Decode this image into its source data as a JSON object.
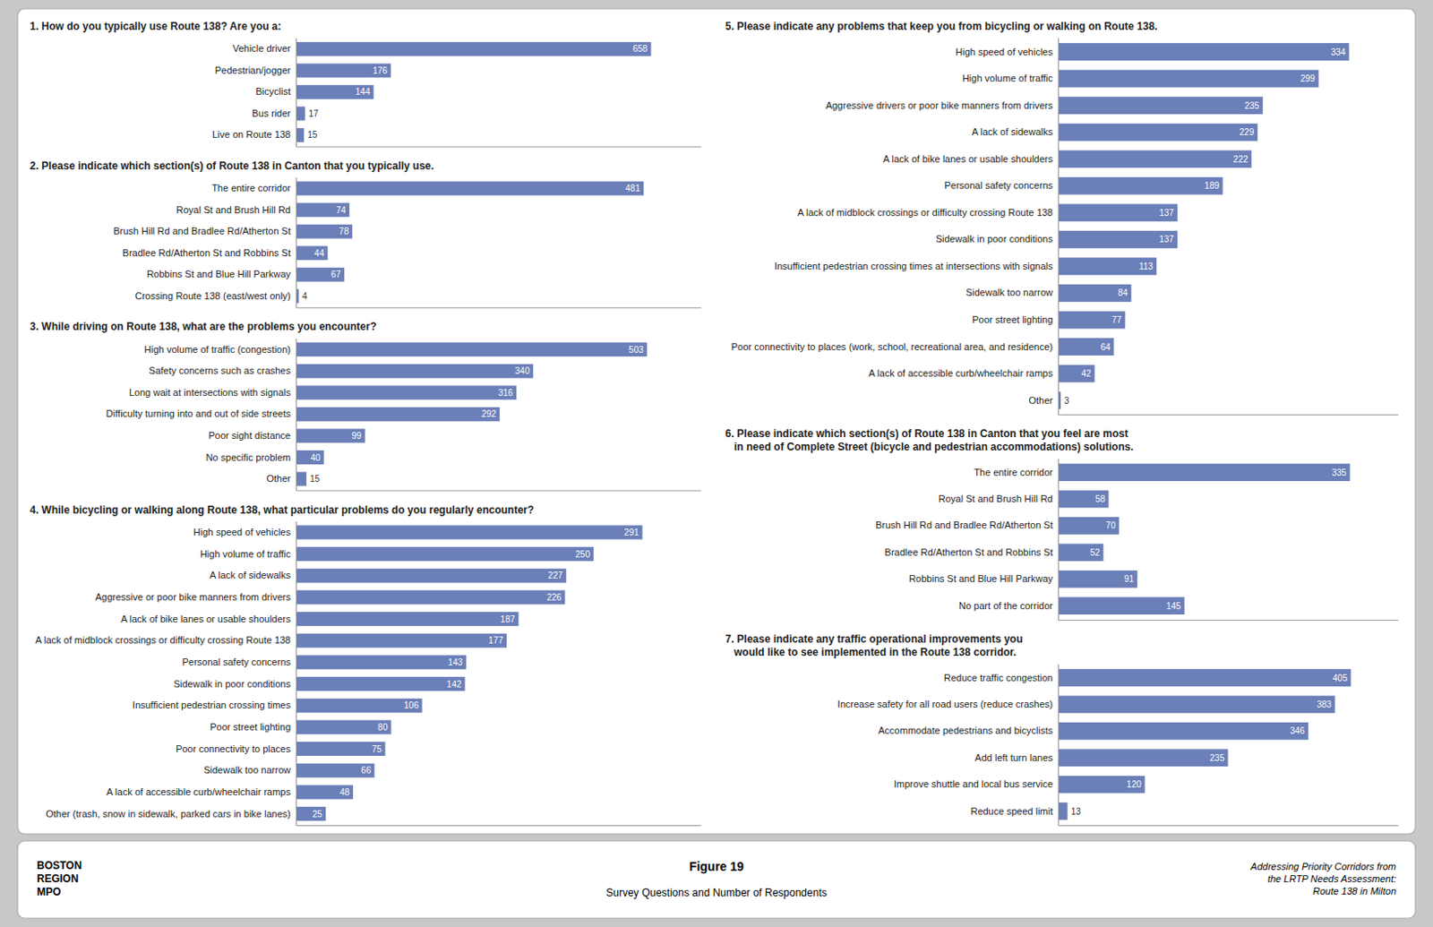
{
  "title": "Figure 19",
  "subtitle": "Survey Questions and Number of Respondents",
  "annotations": [
    "BOSTON\nREGION\nMPO",
    "Addressing Priority Corridors from\nthe LRTP Needs Assessment:\nRoute 138 in Milton"
  ],
  "chart_data": [
    {
      "type": "bar",
      "orientation": "horizontal",
      "title": "1. How do you typically use Route 138? Are you a:",
      "categories": [
        "Vehicle driver",
        "Pedestrian/jogger",
        "Bicyclist",
        "Bus rider",
        "Live on Route 138"
      ],
      "values": [
        658,
        176,
        144,
        17,
        15
      ],
      "color": "#6b7fb8",
      "xlim": [
        0,
        750
      ],
      "grid": false,
      "data_labels": true,
      "tick_labels": "y"
    },
    {
      "type": "bar",
      "orientation": "horizontal",
      "title": "2. Please indicate which section(s) of Route 138 in Canton that you typically use.",
      "categories": [
        "The entire corridor",
        "Royal St and Brush Hill Rd",
        "Brush Hill Rd and Bradlee Rd/Atherton St",
        "Bradlee Rd/Atherton St and Robbins St",
        "Robbins St and Blue Hill Parkway",
        "Crossing Route 138 (east/west only)"
      ],
      "values": [
        481,
        74,
        78,
        44,
        67,
        4
      ],
      "color": "#6b7fb8",
      "xlim": [
        0,
        560
      ],
      "grid": false,
      "data_labels": true,
      "tick_labels": "y"
    },
    {
      "type": "bar",
      "orientation": "horizontal",
      "title": "3. While driving on Route 138, what are the problems you encounter?",
      "categories": [
        "High volume of traffic (congestion)",
        "Safety concerns such as crashes",
        "Long wait at intersections with signals",
        "Difficulty turning into and out of side streets",
        "Poor sight distance",
        "No specific problem",
        "Other"
      ],
      "values": [
        503,
        340,
        316,
        292,
        99,
        40,
        15
      ],
      "color": "#6b7fb8",
      "xlim": [
        0,
        580
      ],
      "grid": false,
      "data_labels": true,
      "tick_labels": "y"
    },
    {
      "type": "bar",
      "orientation": "horizontal",
      "title": "4. While bicycling or walking along Route 138, what particular problems do you regularly encounter?",
      "categories": [
        "High speed of vehicles",
        "High volume of traffic",
        "A lack of sidewalks",
        "Aggressive or poor bike manners from drivers",
        "A lack of bike lanes or usable shoulders",
        "A lack of midblock crossings or difficulty crossing Route 138",
        "Personal safety concerns",
        "Sidewalk in poor conditions",
        "Insufficient pedestrian crossing times",
        "Poor street lighting",
        "Poor connectivity to places",
        "Sidewalk too narrow",
        "A lack of accessible curb/wheelchair ramps",
        "Other (trash, snow in sidewalk, parked cars in bike lanes)"
      ],
      "values": [
        291,
        250,
        227,
        226,
        187,
        177,
        143,
        142,
        106,
        80,
        75,
        66,
        48,
        25
      ],
      "color": "#6b7fb8",
      "xlim": [
        0,
        340
      ],
      "grid": false,
      "data_labels": true,
      "tick_labels": "y"
    },
    {
      "type": "bar",
      "orientation": "horizontal",
      "title": "5. Please indicate any problems that keep you from bicycling or walking on Route 138.",
      "categories": [
        "High speed of vehicles",
        "High volume of traffic",
        "Aggressive drivers or poor bike manners from drivers",
        "A lack of sidewalks",
        "A lack of bike lanes or usable shoulders",
        "Personal safety concerns",
        "A lack of midblock crossings or difficulty crossing Route 138",
        "Sidewalk in poor conditions",
        "Insufficient pedestrian crossing times at intersections with signals",
        "Sidewalk too narrow",
        "Poor street lighting",
        "Poor connectivity to places (work, school, recreational area, and residence)",
        "A lack of accessible curb/wheelchair ramps",
        "Other"
      ],
      "values": [
        334,
        299,
        235,
        229,
        222,
        189,
        137,
        137,
        113,
        84,
        77,
        64,
        42,
        3
      ],
      "color": "#6b7fb8",
      "xlim": [
        0,
        390
      ],
      "grid": false,
      "data_labels": true,
      "tick_labels": "y"
    },
    {
      "type": "bar",
      "orientation": "horizontal",
      "title": "6. Please indicate which section(s) of Route 138 in Canton that you feel are most\n   in need of Complete Street (bicycle and pedestrian accommodations) solutions.",
      "categories": [
        "The entire corridor",
        "Royal St and Brush Hill Rd",
        "Brush Hill Rd and Bradlee Rd/Atherton St",
        "Bradlee Rd/Atherton St and Robbins St",
        "Robbins St and Blue Hill Parkway",
        "No part of the corridor"
      ],
      "values": [
        335,
        58,
        70,
        52,
        91,
        145
      ],
      "color": "#6b7fb8",
      "xlim": [
        0,
        390
      ],
      "grid": false,
      "data_labels": true,
      "tick_labels": "y"
    },
    {
      "type": "bar",
      "orientation": "horizontal",
      "title": "7. Please indicate any traffic operational improvements you\n   would like to see implemented in the Route 138 corridor.",
      "categories": [
        "Reduce traffic congestion",
        "Increase safety for all road users (reduce crashes)",
        "Accommodate pedestrians and bicyclists",
        "Add left turn lanes",
        "Improve shuttle and local bus service",
        "Reduce speed limit"
      ],
      "values": [
        405,
        383,
        346,
        235,
        120,
        13
      ],
      "color": "#6b7fb8",
      "xlim": [
        0,
        470
      ],
      "grid": false,
      "data_labels": true,
      "tick_labels": "y"
    }
  ]
}
